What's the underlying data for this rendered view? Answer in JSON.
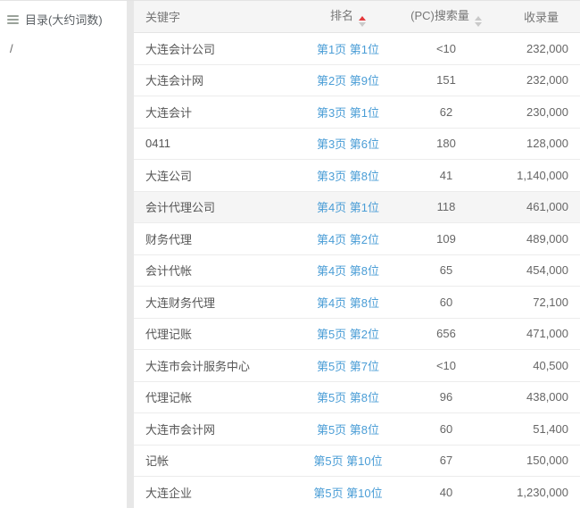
{
  "sidebar": {
    "title": "目录(大约词数)",
    "items": [
      {
        "label": "/"
      }
    ]
  },
  "table": {
    "columns": [
      {
        "label": "关键字",
        "sortable": false,
        "sort": "none"
      },
      {
        "label": "排名",
        "sortable": true,
        "sort": "asc"
      },
      {
        "label": "(PC)搜索量",
        "sortable": true,
        "sort": "none"
      },
      {
        "label": "收录量",
        "sortable": false,
        "sort": "none"
      }
    ],
    "highlighted_row_index": 5,
    "rows": [
      {
        "keyword": "大连会计公司",
        "rank": "第1页 第1位",
        "pc_search_volume": "<10",
        "indexed": "232,000"
      },
      {
        "keyword": "大连会计网",
        "rank": "第2页 第9位",
        "pc_search_volume": "151",
        "indexed": "232,000"
      },
      {
        "keyword": "大连会计",
        "rank": "第3页 第1位",
        "pc_search_volume": "62",
        "indexed": "230,000"
      },
      {
        "keyword": "0411",
        "rank": "第3页 第6位",
        "pc_search_volume": "180",
        "indexed": "128,000"
      },
      {
        "keyword": "大连公司",
        "rank": "第3页 第8位",
        "pc_search_volume": "41",
        "indexed": "1,140,000"
      },
      {
        "keyword": "会计代理公司",
        "rank": "第4页 第1位",
        "pc_search_volume": "118",
        "indexed": "461,000"
      },
      {
        "keyword": "财务代理",
        "rank": "第4页 第2位",
        "pc_search_volume": "109",
        "indexed": "489,000"
      },
      {
        "keyword": "会计代帐",
        "rank": "第4页 第8位",
        "pc_search_volume": "65",
        "indexed": "454,000"
      },
      {
        "keyword": "大连财务代理",
        "rank": "第4页 第8位",
        "pc_search_volume": "60",
        "indexed": "72,100"
      },
      {
        "keyword": "代理记账",
        "rank": "第5页 第2位",
        "pc_search_volume": "656",
        "indexed": "471,000"
      },
      {
        "keyword": "大连市会计服务中心",
        "rank": "第5页 第7位",
        "pc_search_volume": "<10",
        "indexed": "40,500"
      },
      {
        "keyword": "代理记帐",
        "rank": "第5页 第8位",
        "pc_search_volume": "96",
        "indexed": "438,000"
      },
      {
        "keyword": "大连市会计网",
        "rank": "第5页 第8位",
        "pc_search_volume": "60",
        "indexed": "51,400"
      },
      {
        "keyword": "记帐",
        "rank": "第5页 第10位",
        "pc_search_volume": "67",
        "indexed": "150,000"
      },
      {
        "keyword": "大连企业",
        "rank": "第5页 第10位",
        "pc_search_volume": "40",
        "indexed": "1,230,000"
      }
    ]
  },
  "colors": {
    "link": "#4a9dd6",
    "sort_active": "#e4393c",
    "sort_inactive": "#c9c9c9",
    "header_bg": "#f5f5f5",
    "row_hover_bg": "#f5f5f5"
  }
}
